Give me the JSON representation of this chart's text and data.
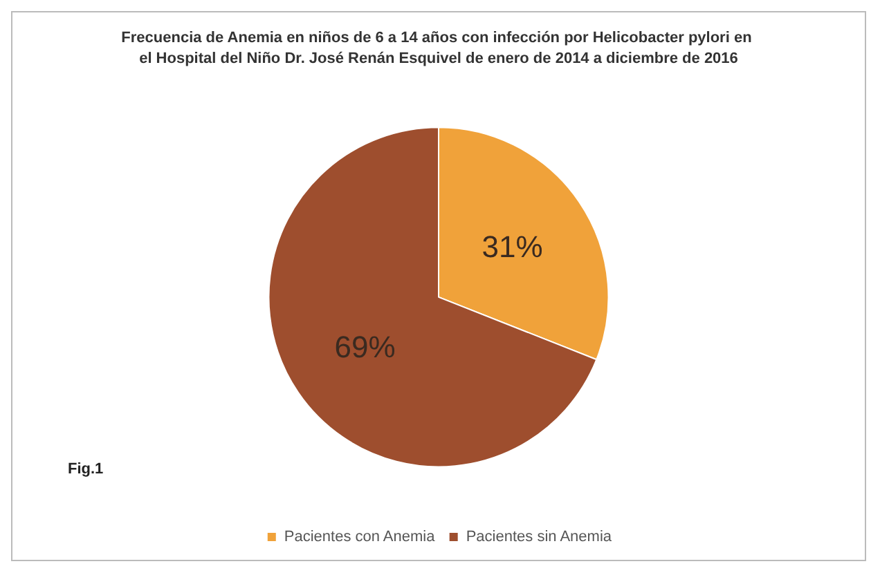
{
  "chart_data": {
    "type": "pie",
    "title": "Frecuencia de Anemia en niños de 6 a 14 años con infección por Helicobacter pylori en el Hospital del Niño Dr. José Renán Esquivel de enero de 2014 a diciembre de 2016",
    "categories": [
      "Pacientes con Anemia",
      "Pacientes sin Anemia"
    ],
    "values": [
      31,
      69
    ],
    "colors": [
      "#f0a23a",
      "#9e4e2e"
    ],
    "value_labels": [
      "31%",
      "69%"
    ],
    "annotations": [
      "Fig.1"
    ],
    "legend": "bottom"
  }
}
